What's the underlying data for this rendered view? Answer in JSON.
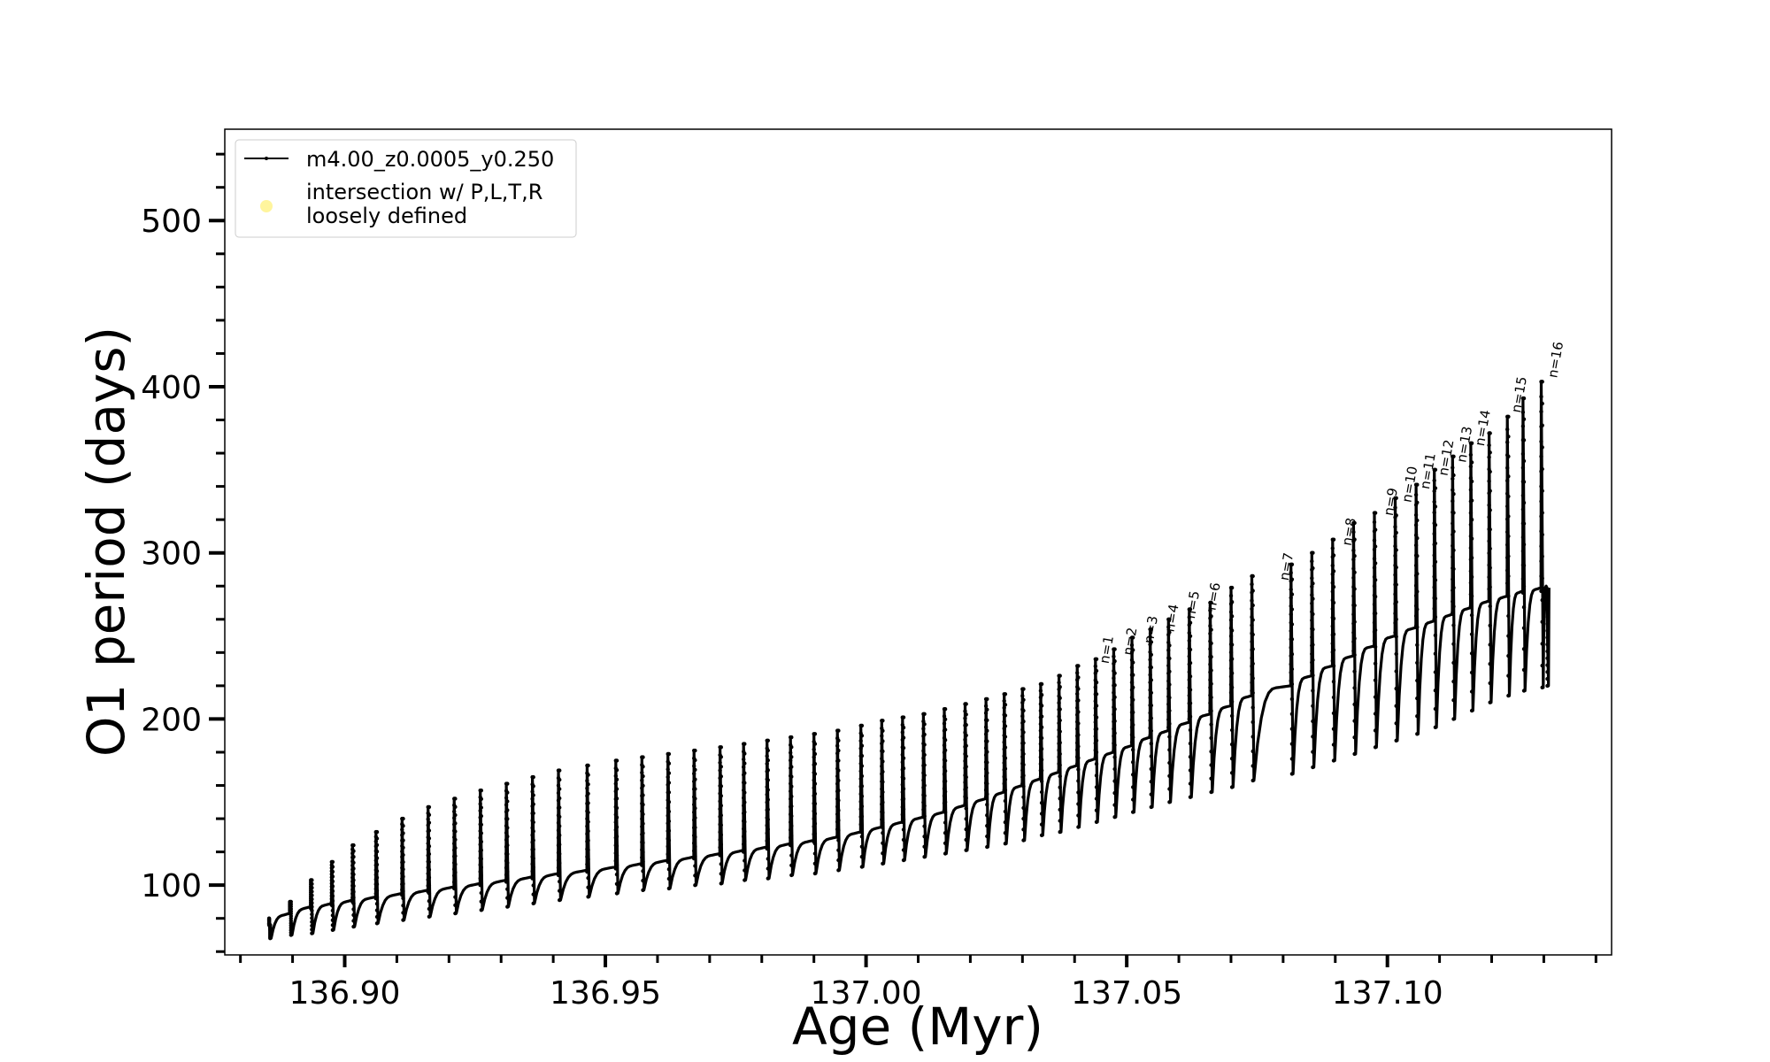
{
  "chart_data": {
    "type": "line",
    "xlabel": "Age (Myr)",
    "ylabel": "O1 period (days)",
    "xlim": [
      136.877,
      137.143
    ],
    "ylim": [
      58,
      555
    ],
    "x_ticks": [
      "136.90",
      "136.95",
      "137.00",
      "137.05",
      "137.10"
    ],
    "x_tick_values": [
      136.9,
      136.95,
      137.0,
      137.05,
      137.1
    ],
    "y_ticks": [
      "100",
      "200",
      "300",
      "400",
      "500"
    ],
    "y_tick_values": [
      100,
      200,
      300,
      400,
      500
    ],
    "grid": false,
    "legend_position": "top-left",
    "legend": {
      "series_label": "m4.00_z0.0005_y0.250",
      "marker_label_line1": "intersection w/ P,L,T,R",
      "marker_label_line2": "loosely defined",
      "marker_color": "#fff59d"
    },
    "series": [
      {
        "name": "m4.00_z0.0005_y0.250",
        "color": "#000000",
        "description": "thermal-pulse cycles; each cycle shows a spike to the peak, a drop to the minimum, then recovery to the baseline",
        "pulse_ages": [
          136.8855,
          136.8895,
          136.8935,
          136.8975,
          136.9015,
          136.906,
          136.911,
          136.916,
          136.921,
          136.926,
          136.931,
          136.936,
          136.941,
          136.9465,
          136.952,
          136.957,
          136.962,
          136.967,
          136.972,
          136.9765,
          136.981,
          136.9855,
          136.99,
          136.9945,
          136.999,
          137.003,
          137.007,
          137.011,
          137.015,
          137.019,
          137.023,
          137.0265,
          137.03,
          137.0335,
          137.037,
          137.0405,
          137.044,
          137.0475,
          137.051,
          137.0545,
          137.058,
          137.062,
          137.066,
          137.07,
          137.074,
          137.0815,
          137.0855,
          137.0895,
          137.0935,
          137.0975,
          137.1015,
          137.1055,
          137.109,
          137.1125,
          137.116,
          137.1195,
          137.123,
          137.126,
          137.1295,
          137.1305
        ],
        "peak_periods": [
          76,
          90,
          103,
          114,
          124,
          132,
          140,
          147,
          152,
          157,
          161,
          165,
          169,
          172,
          175,
          177,
          179,
          181,
          183,
          185,
          187,
          189,
          191,
          193,
          196,
          199,
          201,
          203,
          206,
          209,
          212,
          215,
          218,
          221,
          226,
          232,
          236,
          242,
          249,
          254,
          260,
          266,
          270,
          279,
          286,
          293,
          300,
          308,
          318,
          324,
          333,
          341,
          350,
          358,
          366,
          372,
          382,
          393,
          403,
          278
        ],
        "min_periods": [
          68,
          70,
          71,
          73,
          75,
          77,
          79,
          81,
          83,
          85,
          87,
          89,
          91,
          93,
          95,
          97,
          98,
          100,
          101,
          103,
          104,
          106,
          107,
          109,
          111,
          113,
          115,
          117,
          119,
          121,
          123,
          125,
          127,
          130,
          132,
          135,
          138,
          141,
          144,
          147,
          150,
          153,
          156,
          159,
          163,
          167,
          171,
          175,
          179,
          183,
          187,
          191,
          195,
          200,
          205,
          210,
          214,
          217,
          219,
          220
        ],
        "baseline_periods": [
          80,
          84,
          86,
          88,
          90,
          92,
          94,
          96,
          98,
          100,
          102,
          104,
          106,
          108,
          110,
          112,
          114,
          116,
          118,
          120,
          122,
          124,
          126,
          129,
          132,
          135,
          138,
          141,
          145,
          149,
          153,
          157,
          161,
          165,
          169,
          173,
          177,
          181,
          186,
          190,
          195,
          200,
          205,
          211,
          217,
          223,
          229,
          235,
          241,
          247,
          252,
          256,
          260,
          264,
          268,
          271,
          274,
          276,
          277,
          279
        ]
      }
    ],
    "annotations": [
      {
        "text": "n=1",
        "age": 137.0465,
        "period": 233
      },
      {
        "text": "n=2",
        "age": 137.051,
        "period": 238
      },
      {
        "text": "n=3",
        "age": 137.055,
        "period": 245
      },
      {
        "text": "n=4",
        "age": 137.059,
        "period": 252
      },
      {
        "text": "n=5",
        "age": 137.063,
        "period": 260
      },
      {
        "text": "n=6",
        "age": 137.067,
        "period": 265
      },
      {
        "text": "n=7",
        "age": 137.081,
        "period": 283
      },
      {
        "text": "n=8",
        "age": 137.093,
        "period": 304
      },
      {
        "text": "n=9",
        "age": 137.101,
        "period": 322
      },
      {
        "text": "n=10",
        "age": 137.1045,
        "period": 330
      },
      {
        "text": "n=11",
        "age": 137.108,
        "period": 338
      },
      {
        "text": "n=12",
        "age": 137.1115,
        "period": 346
      },
      {
        "text": "n=13",
        "age": 137.115,
        "period": 354
      },
      {
        "text": "n=14",
        "age": 137.1185,
        "period": 364
      },
      {
        "text": "n=15",
        "age": 137.1255,
        "period": 384
      },
      {
        "text": "n=16",
        "age": 137.1325,
        "period": 405
      }
    ]
  }
}
